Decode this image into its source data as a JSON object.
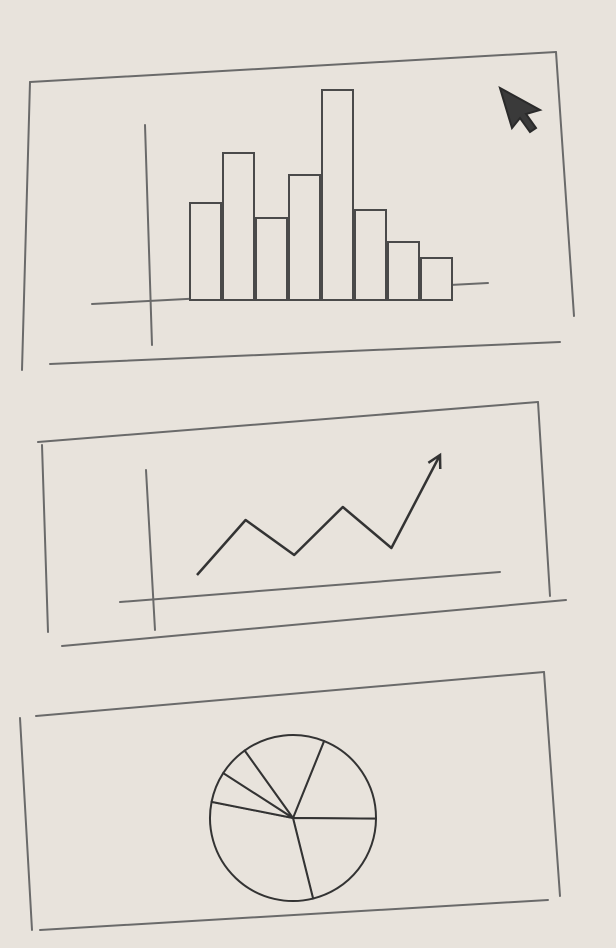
{
  "chart_data": [
    {
      "type": "bar",
      "values": [
        97,
        147,
        82,
        125,
        210,
        90,
        58,
        42
      ],
      "ylim": [
        0,
        250
      ],
      "color": "#4a4a4a"
    },
    {
      "type": "line",
      "values": [
        25,
        80,
        45,
        93,
        52,
        145
      ],
      "ylim": [
        0,
        160
      ],
      "color": "#333333"
    },
    {
      "type": "pie",
      "values": [
        19,
        21,
        32,
        6,
        6,
        16
      ],
      "color": "#333333"
    }
  ]
}
